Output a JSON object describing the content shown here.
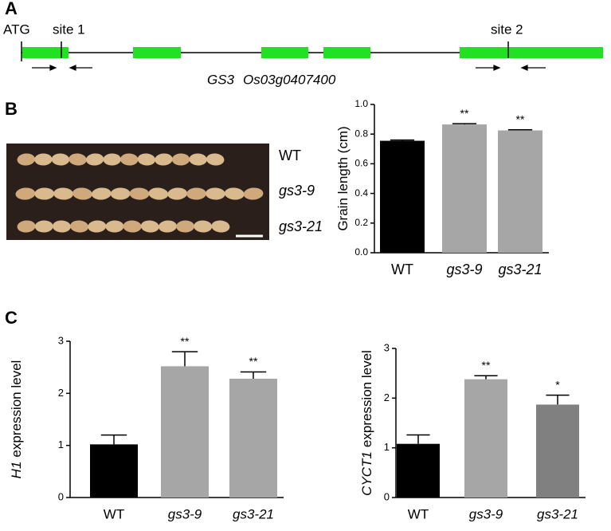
{
  "panels": {
    "a": {
      "label": "A",
      "start": "ATG",
      "site1": "site 1",
      "site2": "site 2",
      "gene": "GS3",
      "locus": "Os03g0407400"
    },
    "b": {
      "label": "B",
      "rows": [
        "WT",
        "gs3-9",
        "gs3-21"
      ]
    },
    "c": {
      "label": "C"
    }
  },
  "chart_data": [
    {
      "type": "bar",
      "ylabel": [
        "Grain length (cm)"
      ],
      "categories": [
        "WT",
        "gs3-9",
        "gs3-21"
      ],
      "values": [
        0.755,
        0.865,
        0.825
      ],
      "errors": [
        0.005,
        0.005,
        0.004
      ],
      "colors": [
        "#000000",
        "#a6a6a6",
        "#a6a6a6"
      ],
      "annotations": [
        null,
        "**",
        "**"
      ],
      "ylim": [
        0,
        1
      ],
      "yticks": [
        {
          "value": 0,
          "label": "0.0"
        },
        0.2,
        0.4,
        0.6,
        0.8,
        {
          "value": 1,
          "label": "1.0"
        }
      ]
    },
    {
      "type": "bar",
      "ylabel": [
        "H1",
        "expression level"
      ],
      "categories": [
        "WT",
        "gs3-9",
        "gs3-21"
      ],
      "values": [
        1.02,
        2.52,
        2.28
      ],
      "errors": [
        0.18,
        0.28,
        0.13
      ],
      "colors": [
        "#000000",
        "#a6a6a6",
        "#a6a6a6"
      ],
      "annotations": [
        null,
        "**",
        "**"
      ],
      "ylim": [
        0,
        3
      ],
      "yticks": [
        0,
        1,
        2,
        3
      ]
    },
    {
      "type": "bar",
      "ylabel": [
        "CYCT1",
        "expression level"
      ],
      "categories": [
        "WT",
        "gs3-9",
        "gs3-21"
      ],
      "values": [
        1.08,
        2.38,
        1.87
      ],
      "errors": [
        0.18,
        0.07,
        0.19
      ],
      "colors": [
        "#000000",
        "#a6a6a6",
        "#808080"
      ],
      "annotations": [
        null,
        "**",
        "*"
      ],
      "ylim": [
        0,
        3
      ],
      "yticks": [
        0,
        1,
        2,
        3
      ]
    }
  ]
}
